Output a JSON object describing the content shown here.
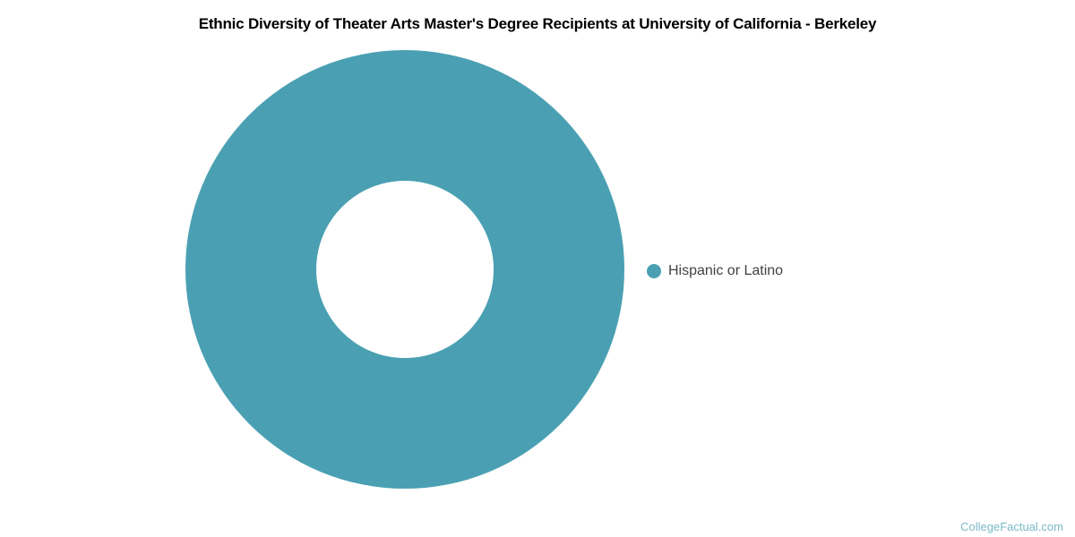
{
  "chart_data": {
    "type": "pie",
    "donut": true,
    "inner_radius_ratio": 0.404,
    "title": "Ethnic Diversity of Theater Arts Master's Degree Recipients at University of California - Berkeley",
    "slices": [
      {
        "label": "Hispanic or Latino",
        "value": 100,
        "color": "#4AA0B2"
      }
    ],
    "legend_position": "right",
    "data_labels": "none",
    "background": "#ffffff"
  },
  "footer": {
    "watermark": "CollegeFactual.com"
  },
  "colors": {
    "accent_teal": "#4AA0B2",
    "title_text": "#000000",
    "legend_text": "#424242",
    "watermark_text": "#7ab9c8"
  }
}
